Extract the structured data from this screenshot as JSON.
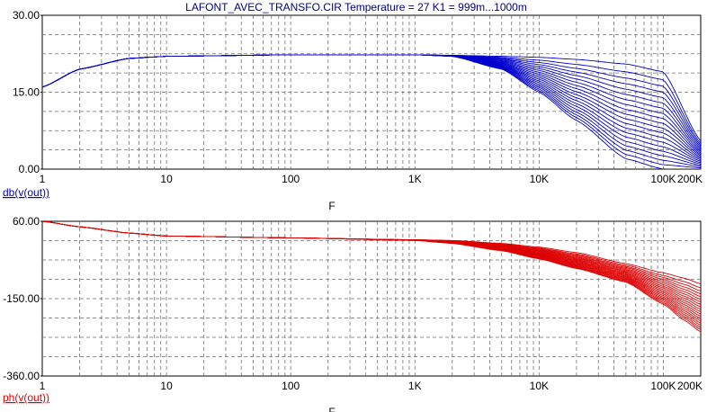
{
  "title": "LAFONT_AVEC_TRANSFO.CIR Temperature = 27 K1 = 999m...1000m",
  "chart_data": [
    {
      "type": "line",
      "panel": "top",
      "x_scale": "log",
      "xlim": [
        1,
        200000
      ],
      "ylim": [
        0,
        30
      ],
      "x_tick_labels": [
        "1",
        "10",
        "100",
        "1K",
        "10K",
        "100K",
        "200K"
      ],
      "x_tick_values": [
        1,
        10,
        100,
        1000,
        10000,
        100000,
        200000
      ],
      "y_tick_labels": [
        "0.00",
        "15.00",
        "30.00"
      ],
      "y_tick_values": [
        0,
        15,
        30
      ],
      "xlabel": "F",
      "trace_label": "db(v(out))",
      "color": "#0000cc",
      "grid": true,
      "series_count": 20,
      "series_sample_x": [
        1,
        2,
        5,
        10,
        100,
        1000,
        2000,
        5000,
        10000,
        20000,
        50000,
        100000,
        200000
      ],
      "series_first_y": [
        16.0,
        19.5,
        21.6,
        22.0,
        22.3,
        22.3,
        22.2,
        22.0,
        21.8,
        21.4,
        20.5,
        19.0,
        5.5
      ],
      "series_last_y": [
        16.0,
        19.5,
        21.6,
        22.0,
        22.3,
        22.3,
        22.0,
        19.5,
        15.0,
        9.5,
        2.0,
        0.0,
        0.0
      ]
    },
    {
      "type": "line",
      "panel": "bottom",
      "x_scale": "log",
      "xlim": [
        1,
        200000
      ],
      "ylim": [
        -360,
        60
      ],
      "x_tick_labels": [
        "1",
        "10",
        "100",
        "1K",
        "10K",
        "100K",
        "200K"
      ],
      "x_tick_values": [
        1,
        10,
        100,
        1000,
        10000,
        100000,
        200000
      ],
      "y_tick_labels": [
        "-360.00",
        "-150.00",
        "60.00"
      ],
      "y_tick_values": [
        -360,
        -150,
        60
      ],
      "xlabel": "F",
      "trace_label": "ph(v(out))",
      "color": "#dd0000",
      "grid": true,
      "series_count": 20,
      "series_sample_x": [
        1,
        2,
        5,
        10,
        100,
        1000,
        2000,
        5000,
        10000,
        20000,
        50000,
        100000,
        150000,
        200000
      ],
      "series_first_y": [
        60,
        45,
        28,
        20,
        15,
        10,
        8,
        0,
        -10,
        -25,
        -55,
        -80,
        -95,
        -110
      ],
      "series_last_y": [
        60,
        45,
        28,
        20,
        15,
        8,
        0,
        -20,
        -42,
        -68,
        -105,
        -165,
        -210,
        -240
      ]
    }
  ]
}
